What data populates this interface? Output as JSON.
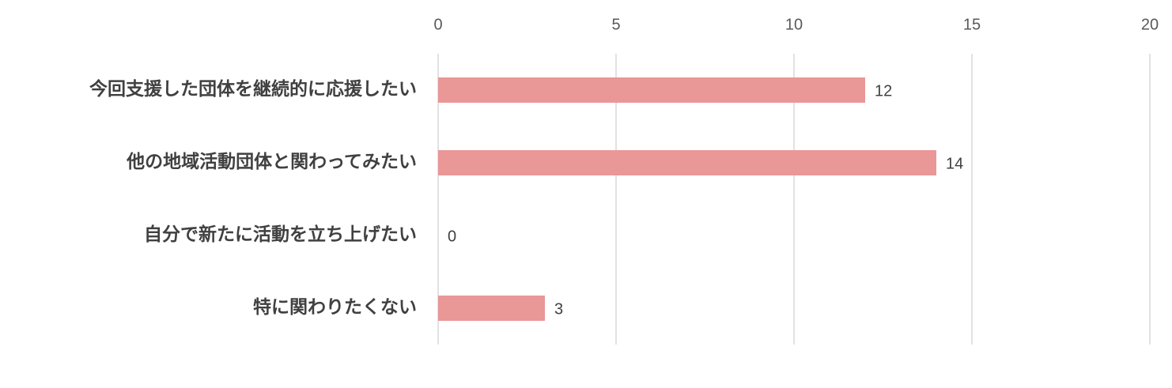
{
  "chart_data": {
    "type": "bar",
    "orientation": "horizontal",
    "categories": [
      "今回支援した団体を継続的に応援したい",
      "他の地域活動団体と関わってみたい",
      "自分で新たに活動を立ち上げたい",
      "特に関わりたくない"
    ],
    "values": [
      12,
      14,
      0,
      3
    ],
    "color": "#ea9797",
    "xlim": [
      0,
      20
    ],
    "xticks": [
      0,
      5,
      10,
      15,
      20
    ],
    "grid": true
  }
}
